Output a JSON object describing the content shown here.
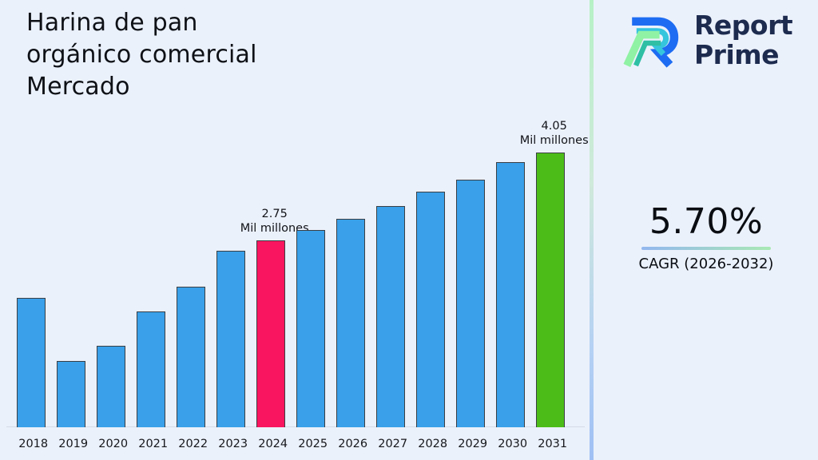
{
  "page": {
    "background": "#ebf1fb"
  },
  "header": {
    "title_lines": [
      "Harina de pan",
      "orgánico comercial",
      "Mercado"
    ]
  },
  "logo": {
    "name_line1": "Report",
    "name_line2": "Prime",
    "text_color": "#1d2b4f",
    "mark_colors": {
      "blue": "#1e6cf2",
      "cyan": "#35c5dd",
      "light_green": "#90f2a4",
      "teal": "#2ebfa5"
    }
  },
  "cagr": {
    "value": "5.70%",
    "label": "CAGR (2026-2032)",
    "underline_from": "#93b7ef",
    "underline_to": "#a9e9b4"
  },
  "chart_data": {
    "type": "bar",
    "title": "Harina de pan orgánico comercial Mercado",
    "unit": "Mil millones",
    "categories": [
      "2018",
      "2019",
      "2020",
      "2021",
      "2022",
      "2023",
      "2024",
      "2025",
      "2026",
      "2027",
      "2028",
      "2029",
      "2030",
      "2031"
    ],
    "values": [
      1.9,
      0.98,
      1.2,
      1.7,
      2.07,
      2.6,
      2.75,
      2.9,
      3.07,
      3.26,
      3.47,
      3.65,
      3.9,
      4.05
    ],
    "ylim": [
      0,
      4.5
    ],
    "grid": false,
    "legend": "none",
    "annotations": [
      {
        "year": "2024",
        "value_label": "2.75",
        "unit_label": "Mil millones"
      },
      {
        "year": "2031",
        "value_label": "4.05",
        "unit_label": "Mil millones"
      }
    ],
    "highlight": {
      "2024": "pink",
      "2031": "green"
    },
    "colors": {
      "default": "#39a0e9",
      "pink": "#f9155f",
      "green": "#4cbd18",
      "border": "#3a3f44",
      "baseline": "#d5dbe6"
    }
  }
}
